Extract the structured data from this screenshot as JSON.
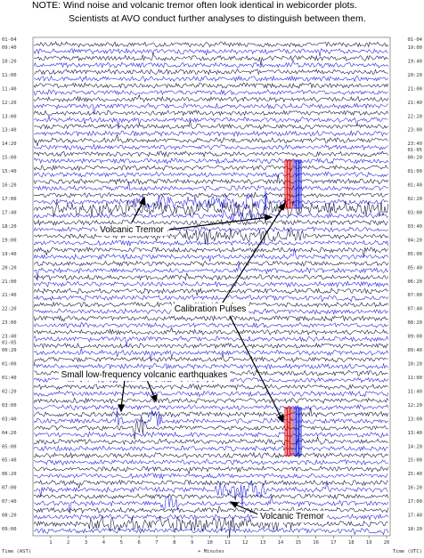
{
  "note": {
    "line1": "NOTE:   Wind noise and volcanic tremor often look identical in webicorder plots.",
    "line2": "Scientists at AVO conduct further analyses to distinguish between them."
  },
  "left_axis": {
    "date_start": "01-04",
    "date_change": "01-05",
    "times": [
      "09:40",
      "10:20",
      "11:00",
      "11:40",
      "12:20",
      "13:00",
      "13:40",
      "14:20",
      "15:00",
      "15:40",
      "16:20",
      "17:00",
      "17:40",
      "18:20",
      "19:00",
      "19:40",
      "20:20",
      "21:00",
      "21:40",
      "22:20",
      "23:00",
      "23:40",
      "00:20",
      "01:00",
      "01:40",
      "02:20",
      "03:00",
      "03:40",
      "04:20",
      "05:00",
      "05:40",
      "06:20",
      "07:00",
      "07:40",
      "08:20",
      "09:00"
    ]
  },
  "right_axis": {
    "date_start": "01-04",
    "date_change": "01-05",
    "times": [
      "19:00",
      "19:40",
      "20:20",
      "21:00",
      "21:40",
      "22:20",
      "23:00",
      "23:40",
      "00:20",
      "01:00",
      "01:40",
      "02:20",
      "03:00",
      "03:40",
      "04:20",
      "05:00",
      "05:40",
      "06:20",
      "07:00",
      "07:40",
      "08:20",
      "09:00",
      "09:40",
      "10:20",
      "11:00",
      "11:40",
      "12:20",
      "13:00",
      "13:40",
      "14:20",
      "15:00",
      "15:40",
      "16:20",
      "17:00",
      "17:40",
      "18:20"
    ]
  },
  "x_axis": {
    "ticks": [
      1,
      2,
      3,
      4,
      5,
      6,
      7,
      8,
      9,
      10,
      11,
      12,
      13,
      14,
      15,
      16,
      17,
      18,
      19,
      20
    ],
    "label": "+ Minutes",
    "left_label": "Time (AST)",
    "right_label": "Time (UTC)"
  },
  "annotations": [
    "Volcanic Tremor",
    "Calibration Pulses",
    "Small low-frequency volcanic earthquakes",
    "Volcanic Tremor"
  ]
}
